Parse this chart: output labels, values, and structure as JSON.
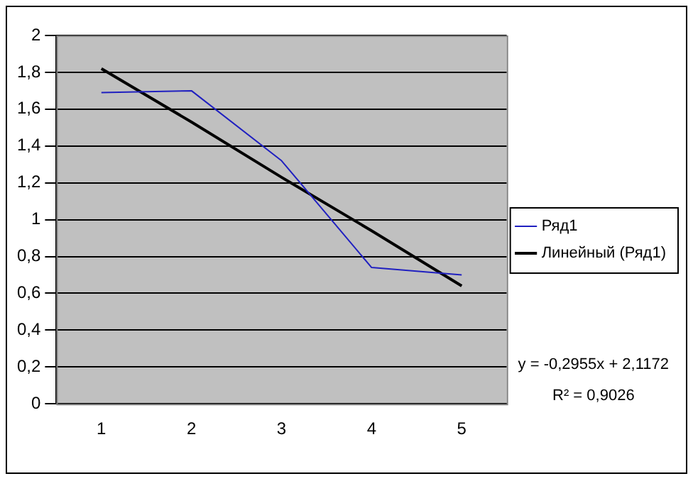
{
  "chart_data": {
    "type": "line",
    "categories": [
      "1",
      "2",
      "3",
      "4",
      "5"
    ],
    "series": [
      {
        "name": "Ряд1",
        "color": "#2020c0",
        "values": [
          1.69,
          1.7,
          1.32,
          0.74,
          0.7
        ]
      },
      {
        "name": "Линейный (Ряд1)",
        "color": "#000000",
        "type": "line",
        "values": [
          1.82,
          1.53,
          1.23,
          0.94,
          0.64
        ]
      }
    ],
    "ylim": [
      0,
      2
    ],
    "yticks": [
      0,
      {
        "value": 0.2,
        "label": "0,2"
      },
      {
        "value": 0.4,
        "label": "0,4"
      },
      {
        "value": 0.6,
        "label": "0,6"
      },
      {
        "value": 0.8,
        "label": "0,8"
      },
      1,
      {
        "value": 1.2,
        "label": "1,2"
      },
      {
        "value": 1.4,
        "label": "1,4"
      },
      {
        "value": 1.6,
        "label": "1,6"
      },
      {
        "value": 1.8,
        "label": "1,8"
      },
      2
    ],
    "grid": "y",
    "legend": "right",
    "marker": "none",
    "annotations": [
      "y = -0,2955x + 2,1172",
      "R² = 0,9026"
    ]
  }
}
